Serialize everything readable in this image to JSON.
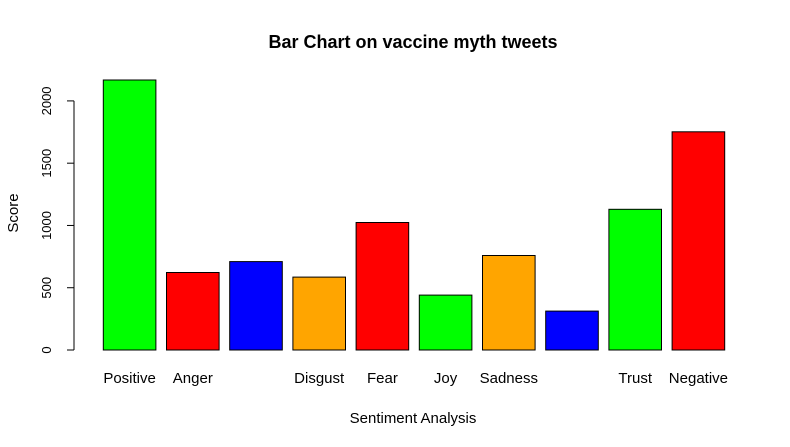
{
  "chart_data": {
    "type": "bar",
    "title": "Bar Chart on vaccine myth tweets",
    "xlabel": "Sentiment Analysis",
    "ylabel": "Score",
    "ylim": [
      0,
      2200
    ],
    "yticks": [
      0,
      500,
      1000,
      1500,
      2000
    ],
    "grid": false,
    "categories": [
      "Positive",
      "Anger",
      "",
      "Disgust",
      "Fear",
      "Joy",
      "Sadness",
      "",
      "Trust",
      "Negative"
    ],
    "values": [
      2168,
      622,
      710,
      585,
      1024,
      441,
      759,
      312,
      1130,
      1752
    ],
    "colors": [
      "#00ff00",
      "#ff0000",
      "#0000ff",
      "#ffa500",
      "#ff0000",
      "#00ff00",
      "#ffa500",
      "#0000ff",
      "#00ff00",
      "#ff0000"
    ]
  }
}
